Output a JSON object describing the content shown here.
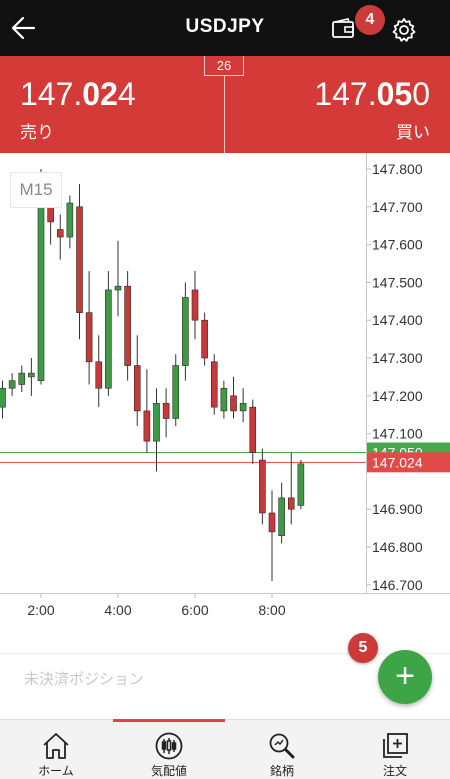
{
  "header": {
    "title": "USDJPY",
    "back_icon": "arrow-left-icon",
    "wallet_icon": "wallet-icon",
    "settings_icon": "gear-icon"
  },
  "annotations": {
    "badge_a": "4",
    "badge_b": "5",
    "badge_color": "#cc3a3a"
  },
  "quote": {
    "spread": "26",
    "bid": {
      "pre": "147.",
      "big": "02",
      "post": "4",
      "label": "売り"
    },
    "ask": {
      "pre": "147.",
      "big": "05",
      "post": "0",
      "label": "買い"
    },
    "accent_color": "#d43a38"
  },
  "chart": {
    "timeframe": "M15"
  },
  "chart_data": {
    "type": "candlestick",
    "y_ticks": [
      "147.800",
      "147.700",
      "147.600",
      "147.500",
      "147.400",
      "147.300",
      "147.200",
      "147.100",
      "146.900",
      "146.800",
      "146.700"
    ],
    "ylim": [
      146.67,
      147.82
    ],
    "x_ticks": [
      {
        "label": "2:00",
        "t": 2.0
      },
      {
        "label": "4:00",
        "t": 4.0
      },
      {
        "label": "6:00",
        "t": 6.0
      },
      {
        "label": "8:00",
        "t": 8.0
      }
    ],
    "bid_line": {
      "label": "147.024",
      "value": 147.024,
      "color": "#e24a4a"
    },
    "ask_line": {
      "label": "147.050",
      "value": 147.05,
      "color": "#45a84d"
    },
    "up_color": "#3f9a45",
    "down_color": "#c8383a",
    "candles": [
      {
        "t": 1.0,
        "o": 147.17,
        "h": 147.24,
        "l": 147.14,
        "c": 147.22
      },
      {
        "t": 1.25,
        "o": 147.22,
        "h": 147.26,
        "l": 147.2,
        "c": 147.24
      },
      {
        "t": 1.5,
        "o": 147.23,
        "h": 147.28,
        "l": 147.21,
        "c": 147.26
      },
      {
        "t": 1.75,
        "o": 147.25,
        "h": 147.3,
        "l": 147.2,
        "c": 147.26
      },
      {
        "t": 2.0,
        "o": 147.24,
        "h": 147.8,
        "l": 147.23,
        "c": 147.72
      },
      {
        "t": 2.25,
        "o": 147.71,
        "h": 147.74,
        "l": 147.6,
        "c": 147.66
      },
      {
        "t": 2.5,
        "o": 147.64,
        "h": 147.68,
        "l": 147.56,
        "c": 147.62
      },
      {
        "t": 2.75,
        "o": 147.62,
        "h": 147.73,
        "l": 147.59,
        "c": 147.71
      },
      {
        "t": 3.0,
        "o": 147.7,
        "h": 147.76,
        "l": 147.35,
        "c": 147.42
      },
      {
        "t": 3.25,
        "o": 147.42,
        "h": 147.53,
        "l": 147.23,
        "c": 147.29
      },
      {
        "t": 3.5,
        "o": 147.29,
        "h": 147.36,
        "l": 147.17,
        "c": 147.22
      },
      {
        "t": 3.75,
        "o": 147.22,
        "h": 147.53,
        "l": 147.2,
        "c": 147.48
      },
      {
        "t": 4.0,
        "o": 147.48,
        "h": 147.61,
        "l": 147.41,
        "c": 147.49
      },
      {
        "t": 4.25,
        "o": 147.49,
        "h": 147.53,
        "l": 147.24,
        "c": 147.28
      },
      {
        "t": 4.5,
        "o": 147.28,
        "h": 147.36,
        "l": 147.12,
        "c": 147.16
      },
      {
        "t": 4.75,
        "o": 147.16,
        "h": 147.27,
        "l": 147.05,
        "c": 147.08
      },
      {
        "t": 5.0,
        "o": 147.08,
        "h": 147.22,
        "l": 147.0,
        "c": 147.18
      },
      {
        "t": 5.25,
        "o": 147.18,
        "h": 147.22,
        "l": 147.09,
        "c": 147.14
      },
      {
        "t": 5.5,
        "o": 147.14,
        "h": 147.31,
        "l": 147.12,
        "c": 147.28
      },
      {
        "t": 5.75,
        "o": 147.28,
        "h": 147.5,
        "l": 147.24,
        "c": 147.46
      },
      {
        "t": 6.0,
        "o": 147.48,
        "h": 147.53,
        "l": 147.35,
        "c": 147.4
      },
      {
        "t": 6.25,
        "o": 147.4,
        "h": 147.42,
        "l": 147.28,
        "c": 147.3
      },
      {
        "t": 6.5,
        "o": 147.29,
        "h": 147.31,
        "l": 147.15,
        "c": 147.17
      },
      {
        "t": 6.75,
        "o": 147.16,
        "h": 147.24,
        "l": 147.14,
        "c": 147.22
      },
      {
        "t": 7.0,
        "o": 147.2,
        "h": 147.25,
        "l": 147.14,
        "c": 147.16
      },
      {
        "t": 7.25,
        "o": 147.16,
        "h": 147.22,
        "l": 147.13,
        "c": 147.18
      },
      {
        "t": 7.5,
        "o": 147.17,
        "h": 147.19,
        "l": 147.02,
        "c": 147.05
      },
      {
        "t": 7.75,
        "o": 147.03,
        "h": 147.06,
        "l": 146.86,
        "c": 146.89
      },
      {
        "t": 8.0,
        "o": 146.89,
        "h": 146.95,
        "l": 146.71,
        "c": 146.84
      },
      {
        "t": 8.25,
        "o": 146.83,
        "h": 146.97,
        "l": 146.81,
        "c": 146.93
      },
      {
        "t": 8.5,
        "o": 146.93,
        "h": 147.05,
        "l": 146.86,
        "c": 146.9
      },
      {
        "t": 8.75,
        "o": 146.91,
        "h": 147.03,
        "l": 146.9,
        "c": 147.02
      }
    ]
  },
  "positions": {
    "label": "未決済ポジション",
    "add_icon": "plus-icon",
    "add_color": "#3ea547"
  },
  "tabbar": {
    "tabs": [
      {
        "label": "ホーム",
        "icon": "home-icon"
      },
      {
        "label": "気配値",
        "icon": "quotes-icon"
      },
      {
        "label": "銘柄",
        "icon": "search-icon"
      },
      {
        "label": "注文",
        "icon": "order-icon"
      }
    ],
    "indicator_color": "#e0463f"
  }
}
